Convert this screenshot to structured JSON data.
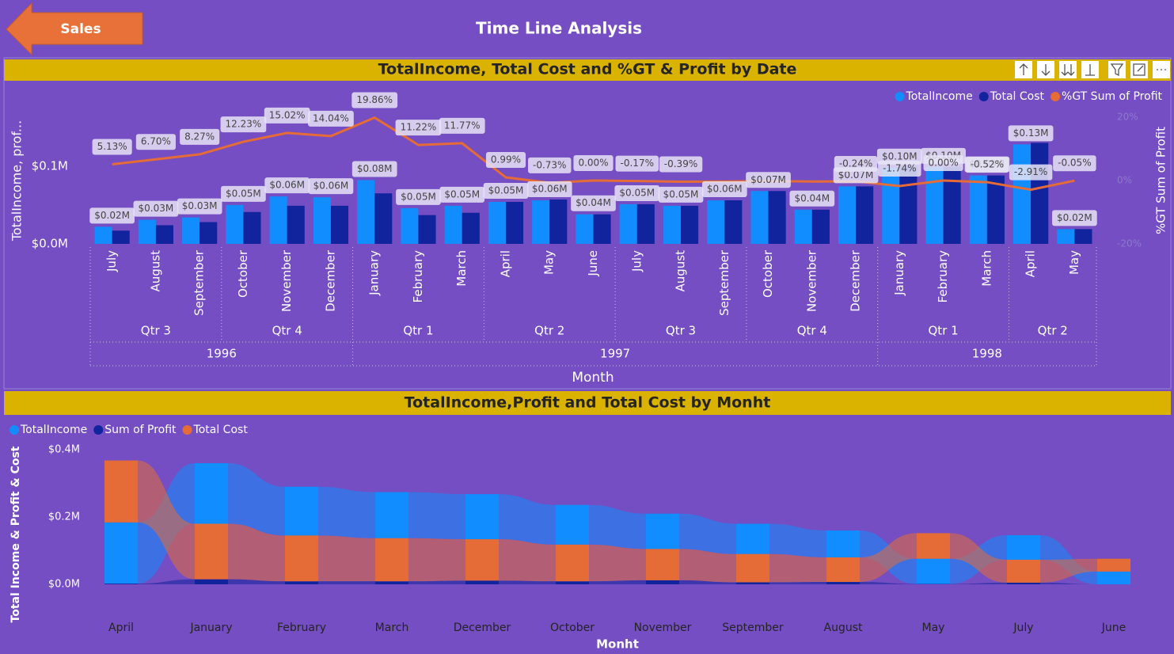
{
  "header": {
    "button": "Sales",
    "title": "Time Line Analysis"
  },
  "chart_data": [
    {
      "type": "combo",
      "title": "TotalIncome, Total Cost and %GT & Profit by Date",
      "x_title": "Month",
      "y_title": "TotalIncome, prof...",
      "y2_title": "%GT Sum of Profit",
      "categories": [
        "July",
        "August",
        "September",
        "October",
        "November",
        "December",
        "January",
        "February",
        "March",
        "April",
        "May",
        "June",
        "July",
        "August",
        "September",
        "October",
        "November",
        "December",
        "January",
        "February",
        "March",
        "April",
        "May"
      ],
      "quarters": [
        "Qtr 3",
        "Qtr 3",
        "Qtr 3",
        "Qtr 4",
        "Qtr 4",
        "Qtr 4",
        "Qtr 1",
        "Qtr 1",
        "Qtr 1",
        "Qtr 2",
        "Qtr 2",
        "Qtr 2",
        "Qtr 3",
        "Qtr 3",
        "Qtr 3",
        "Qtr 4",
        "Qtr 4",
        "Qtr 4",
        "Qtr 1",
        "Qtr 1",
        "Qtr 1",
        "Qtr 2",
        "Qtr 2"
      ],
      "years": [
        "1996",
        "1996",
        "1996",
        "1996",
        "1996",
        "1996",
        "1997",
        "1997",
        "1997",
        "1997",
        "1997",
        "1997",
        "1997",
        "1997",
        "1997",
        "1997",
        "1997",
        "1997",
        "1998",
        "1998",
        "1998",
        "1998",
        "1998"
      ],
      "series": [
        {
          "name": "TotalIncome",
          "color": "#118DFF",
          "type": "bar",
          "values": [
            0.022,
            0.031,
            0.034,
            0.05,
            0.061,
            0.06,
            0.082,
            0.046,
            0.049,
            0.054,
            0.056,
            0.038,
            0.051,
            0.049,
            0.056,
            0.068,
            0.044,
            0.074,
            0.098,
            0.099,
            0.088,
            0.128,
            0.019
          ],
          "value_labels": [
            "$0.02M",
            "$0.03M",
            "$0.03M",
            "$0.05M",
            "$0.06M",
            "$0.06M",
            "$0.08M",
            "$0.05M",
            "$0.05M",
            "$0.05M",
            "$0.06M",
            "$0.04M",
            "$0.05M",
            "$0.05M",
            "$0.06M",
            "$0.07M",
            "$0.04M",
            "$0.07M",
            "$0.10M",
            "$0.10M",
            "$0.09M",
            "$0.13M",
            "$0.02M"
          ]
        },
        {
          "name": "Total Cost",
          "color": "#12239E",
          "type": "bar",
          "values": [
            0.017,
            0.024,
            0.028,
            0.041,
            0.049,
            0.049,
            0.065,
            0.037,
            0.04,
            0.054,
            0.057,
            0.038,
            0.051,
            0.049,
            0.056,
            0.068,
            0.044,
            0.074,
            0.1,
            0.099,
            0.088,
            0.13,
            0.019
          ]
        },
        {
          "name": "%GT Sum of Profit",
          "color": "#E66C37",
          "type": "line",
          "axis": "y2",
          "values": [
            5.13,
            6.7,
            8.27,
            12.23,
            15.02,
            14.04,
            19.86,
            11.22,
            11.77,
            0.99,
            -0.73,
            0.0,
            -0.17,
            -0.39,
            -0.3,
            -0.2,
            -0.3,
            -0.24,
            -1.74,
            0.0,
            -0.52,
            -2.91,
            -0.05
          ],
          "value_labels": [
            "5.13%",
            "6.70%",
            "8.27%",
            "12.23%",
            "15.02%",
            "14.04%",
            "19.86%",
            "11.22%",
            "11.77%",
            "0.99%",
            "-0.73%",
            "0.00%",
            "-0.17%",
            "-0.39%",
            null,
            null,
            null,
            "-0.24%",
            "-1.74%",
            "0.00%",
            "-0.52%",
            "-2.91%",
            "-0.05%"
          ]
        }
      ],
      "ylim": [
        0,
        0.163
      ],
      "yticks": [
        {
          "value": 0,
          "label": "$0.0M"
        },
        {
          "value": 0.1,
          "label": "$0.1M"
        }
      ],
      "y2lim": [
        -20,
        20
      ],
      "y2ticks": [
        {
          "value": -20,
          "label": "-20%"
        },
        {
          "value": 0,
          "label": "0%"
        },
        {
          "value": 20,
          "label": "20%"
        }
      ],
      "legend": "top-right"
    },
    {
      "type": "ribbon",
      "title": "TotalIncome,Profit and Total Cost by Monht",
      "x_title": "Monht",
      "y_title": "Total Income & Profit & Cost",
      "categories": [
        "April",
        "January",
        "February",
        "March",
        "December",
        "October",
        "November",
        "September",
        "August",
        "May",
        "July",
        "June"
      ],
      "series": [
        {
          "name": "TotalIncome",
          "color": "#118DFF",
          "values": [
            0.182,
            0.18,
            0.145,
            0.137,
            0.134,
            0.118,
            0.105,
            0.09,
            0.08,
            0.075,
            0.073,
            0.038
          ]
        },
        {
          "name": "Sum of Profit",
          "color": "#12239E",
          "values": [
            -0.002,
            0.015,
            0.009,
            0.009,
            0.011,
            0.009,
            0.012,
            0.006,
            0.007,
            -0.001,
            0.005,
            0.0
          ]
        },
        {
          "name": "Total Cost",
          "color": "#E66C37",
          "values": [
            0.184,
            0.165,
            0.136,
            0.128,
            0.123,
            0.109,
            0.093,
            0.084,
            0.073,
            0.076,
            0.068,
            0.038
          ]
        }
      ],
      "ylim": [
        0,
        0.4
      ],
      "yticks": [
        {
          "value": 0,
          "label": "$0.0M"
        },
        {
          "value": 0.2,
          "label": "$0.2M"
        },
        {
          "value": 0.4,
          "label": "$0.4M"
        }
      ],
      "legend": "top-left"
    }
  ]
}
